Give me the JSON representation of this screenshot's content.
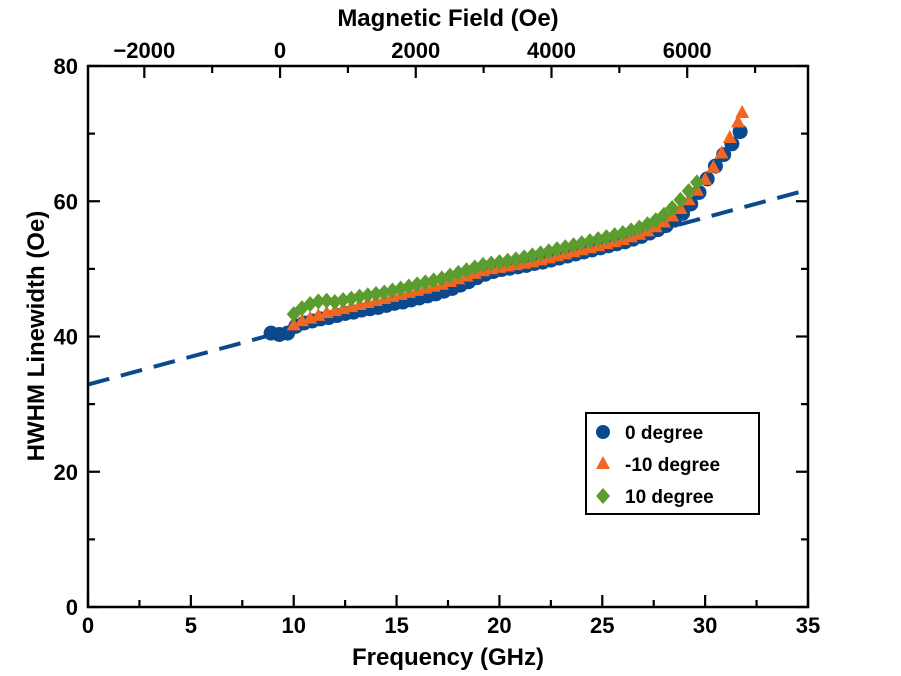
{
  "chart_data": {
    "type": "scatter",
    "xlabel": "Frequency (GHz)",
    "x2label": "Magnetic Field (Oe)",
    "ylabel": "HWHM Linewidth (Oe)",
    "xlim": [
      0,
      35
    ],
    "ylim": [
      0,
      80
    ],
    "x2lim": [
      -2830,
      7780
    ],
    "x_ticks": [
      0,
      5,
      10,
      15,
      20,
      25,
      30,
      35
    ],
    "x_minor_ticks": [
      2.5,
      7.5,
      12.5,
      17.5,
      22.5,
      27.5,
      32.5
    ],
    "y_ticks": [
      0,
      20,
      40,
      60,
      80
    ],
    "y_minor_ticks": [
      10,
      30,
      50,
      70
    ],
    "x2_ticks": [
      -2000,
      0,
      2000,
      4000,
      6000
    ],
    "x2_minor_ticks": [
      -1000,
      1000,
      3000,
      5000,
      7000
    ],
    "grid": false,
    "legend_position": "lower-right",
    "series": [
      {
        "name": "0 degree",
        "marker": "circle",
        "color": "#0a4a8c",
        "x": [
          8.9,
          9.3,
          9.7,
          10.1,
          10.5,
          10.9,
          11.3,
          11.7,
          12.1,
          12.5,
          12.9,
          13.3,
          13.7,
          14.1,
          14.5,
          14.9,
          15.3,
          15.7,
          16.1,
          16.5,
          16.9,
          17.3,
          17.7,
          18.1,
          18.5,
          18.9,
          19.3,
          19.7,
          20.1,
          20.5,
          20.9,
          21.3,
          21.7,
          22.1,
          22.5,
          22.9,
          23.3,
          23.7,
          24.1,
          24.5,
          24.9,
          25.3,
          25.7,
          26.1,
          26.5,
          26.9,
          27.3,
          27.7,
          28.1,
          28.5,
          28.9,
          29.3,
          29.7,
          30.1,
          30.5,
          30.9,
          31.3,
          31.7
        ],
        "y": [
          40.5,
          40.3,
          40.5,
          41.5,
          42.0,
          42.3,
          42.6,
          42.8,
          43.1,
          43.4,
          43.6,
          43.9,
          44.1,
          44.3,
          44.6,
          44.9,
          45.1,
          45.4,
          45.7,
          46.0,
          46.3,
          46.7,
          47.1,
          47.6,
          48.1,
          48.7,
          49.2,
          49.6,
          49.9,
          50.1,
          50.3,
          50.5,
          50.8,
          51.0,
          51.3,
          51.6,
          51.9,
          52.2,
          52.5,
          52.8,
          53.1,
          53.4,
          53.7,
          54.0,
          54.4,
          54.8,
          55.3,
          55.8,
          56.4,
          57.2,
          58.2,
          59.6,
          61.3,
          63.3,
          65.2,
          66.9,
          68.5,
          70.3
        ]
      },
      {
        "name": "-10 degree",
        "marker": "triangle",
        "color": "#f26522",
        "x": [
          10.0,
          10.4,
          10.8,
          11.2,
          11.6,
          12.0,
          12.4,
          12.8,
          13.2,
          13.6,
          14.0,
          14.4,
          14.8,
          15.2,
          15.6,
          16.0,
          16.4,
          16.8,
          17.2,
          17.6,
          18.0,
          18.4,
          18.8,
          19.2,
          19.6,
          20.0,
          20.4,
          20.8,
          21.2,
          21.6,
          22.0,
          22.4,
          22.8,
          23.2,
          23.6,
          24.0,
          24.4,
          24.8,
          25.2,
          25.6,
          26.0,
          26.4,
          26.8,
          27.2,
          27.6,
          28.0,
          28.4,
          28.8,
          29.2,
          29.6,
          30.0,
          30.4,
          30.8,
          31.2,
          31.6,
          31.8
        ],
        "y": [
          41.8,
          42.4,
          42.8,
          43.2,
          43.6,
          43.9,
          44.2,
          44.5,
          44.8,
          45.1,
          45.4,
          45.7,
          46.0,
          46.3,
          46.6,
          46.9,
          47.2,
          47.5,
          47.8,
          48.2,
          48.6,
          49.0,
          49.4,
          49.8,
          50.1,
          50.3,
          50.5,
          50.7,
          50.9,
          51.1,
          51.4,
          51.7,
          52.0,
          52.3,
          52.6,
          52.9,
          53.2,
          53.5,
          53.8,
          54.1,
          54.4,
          54.8,
          55.2,
          55.7,
          56.3,
          57.0,
          57.9,
          59.0,
          60.3,
          61.7,
          63.3,
          65.1,
          67.2,
          69.5,
          71.8,
          73.2
        ]
      },
      {
        "name": "10 degree",
        "marker": "diamond",
        "color": "#5a9c2e",
        "x": [
          10.0,
          10.4,
          10.8,
          11.2,
          11.6,
          12.0,
          12.4,
          12.8,
          13.2,
          13.6,
          14.0,
          14.4,
          14.8,
          15.2,
          15.6,
          16.0,
          16.4,
          16.8,
          17.2,
          17.6,
          18.0,
          18.4,
          18.8,
          19.2,
          19.6,
          20.0,
          20.4,
          20.8,
          21.2,
          21.6,
          22.0,
          22.4,
          22.8,
          23.2,
          23.6,
          24.0,
          24.4,
          24.8,
          25.2,
          25.6,
          26.0,
          26.4,
          26.8,
          27.2,
          27.6,
          28.0,
          28.4,
          28.8,
          29.2,
          29.6
        ],
        "y": [
          43.3,
          44.2,
          44.8,
          45.2,
          45.3,
          45.1,
          45.4,
          45.6,
          45.9,
          46.1,
          46.3,
          46.5,
          46.8,
          47.1,
          47.4,
          47.7,
          48.0,
          48.3,
          48.6,
          49.0,
          49.4,
          49.8,
          50.2,
          50.6,
          50.8,
          51.0,
          51.2,
          51.4,
          51.7,
          52.0,
          52.3,
          52.6,
          52.9,
          53.2,
          53.5,
          53.8,
          54.1,
          54.4,
          54.7,
          55.0,
          55.3,
          55.7,
          56.1,
          56.6,
          57.2,
          58.0,
          59.0,
          60.2,
          61.5,
          62.8
        ]
      }
    ],
    "fit_line": {
      "style": "dashed",
      "color": "#0a4a8c",
      "x": [
        0,
        35
      ],
      "y": [
        32.9,
        61.7
      ]
    }
  }
}
